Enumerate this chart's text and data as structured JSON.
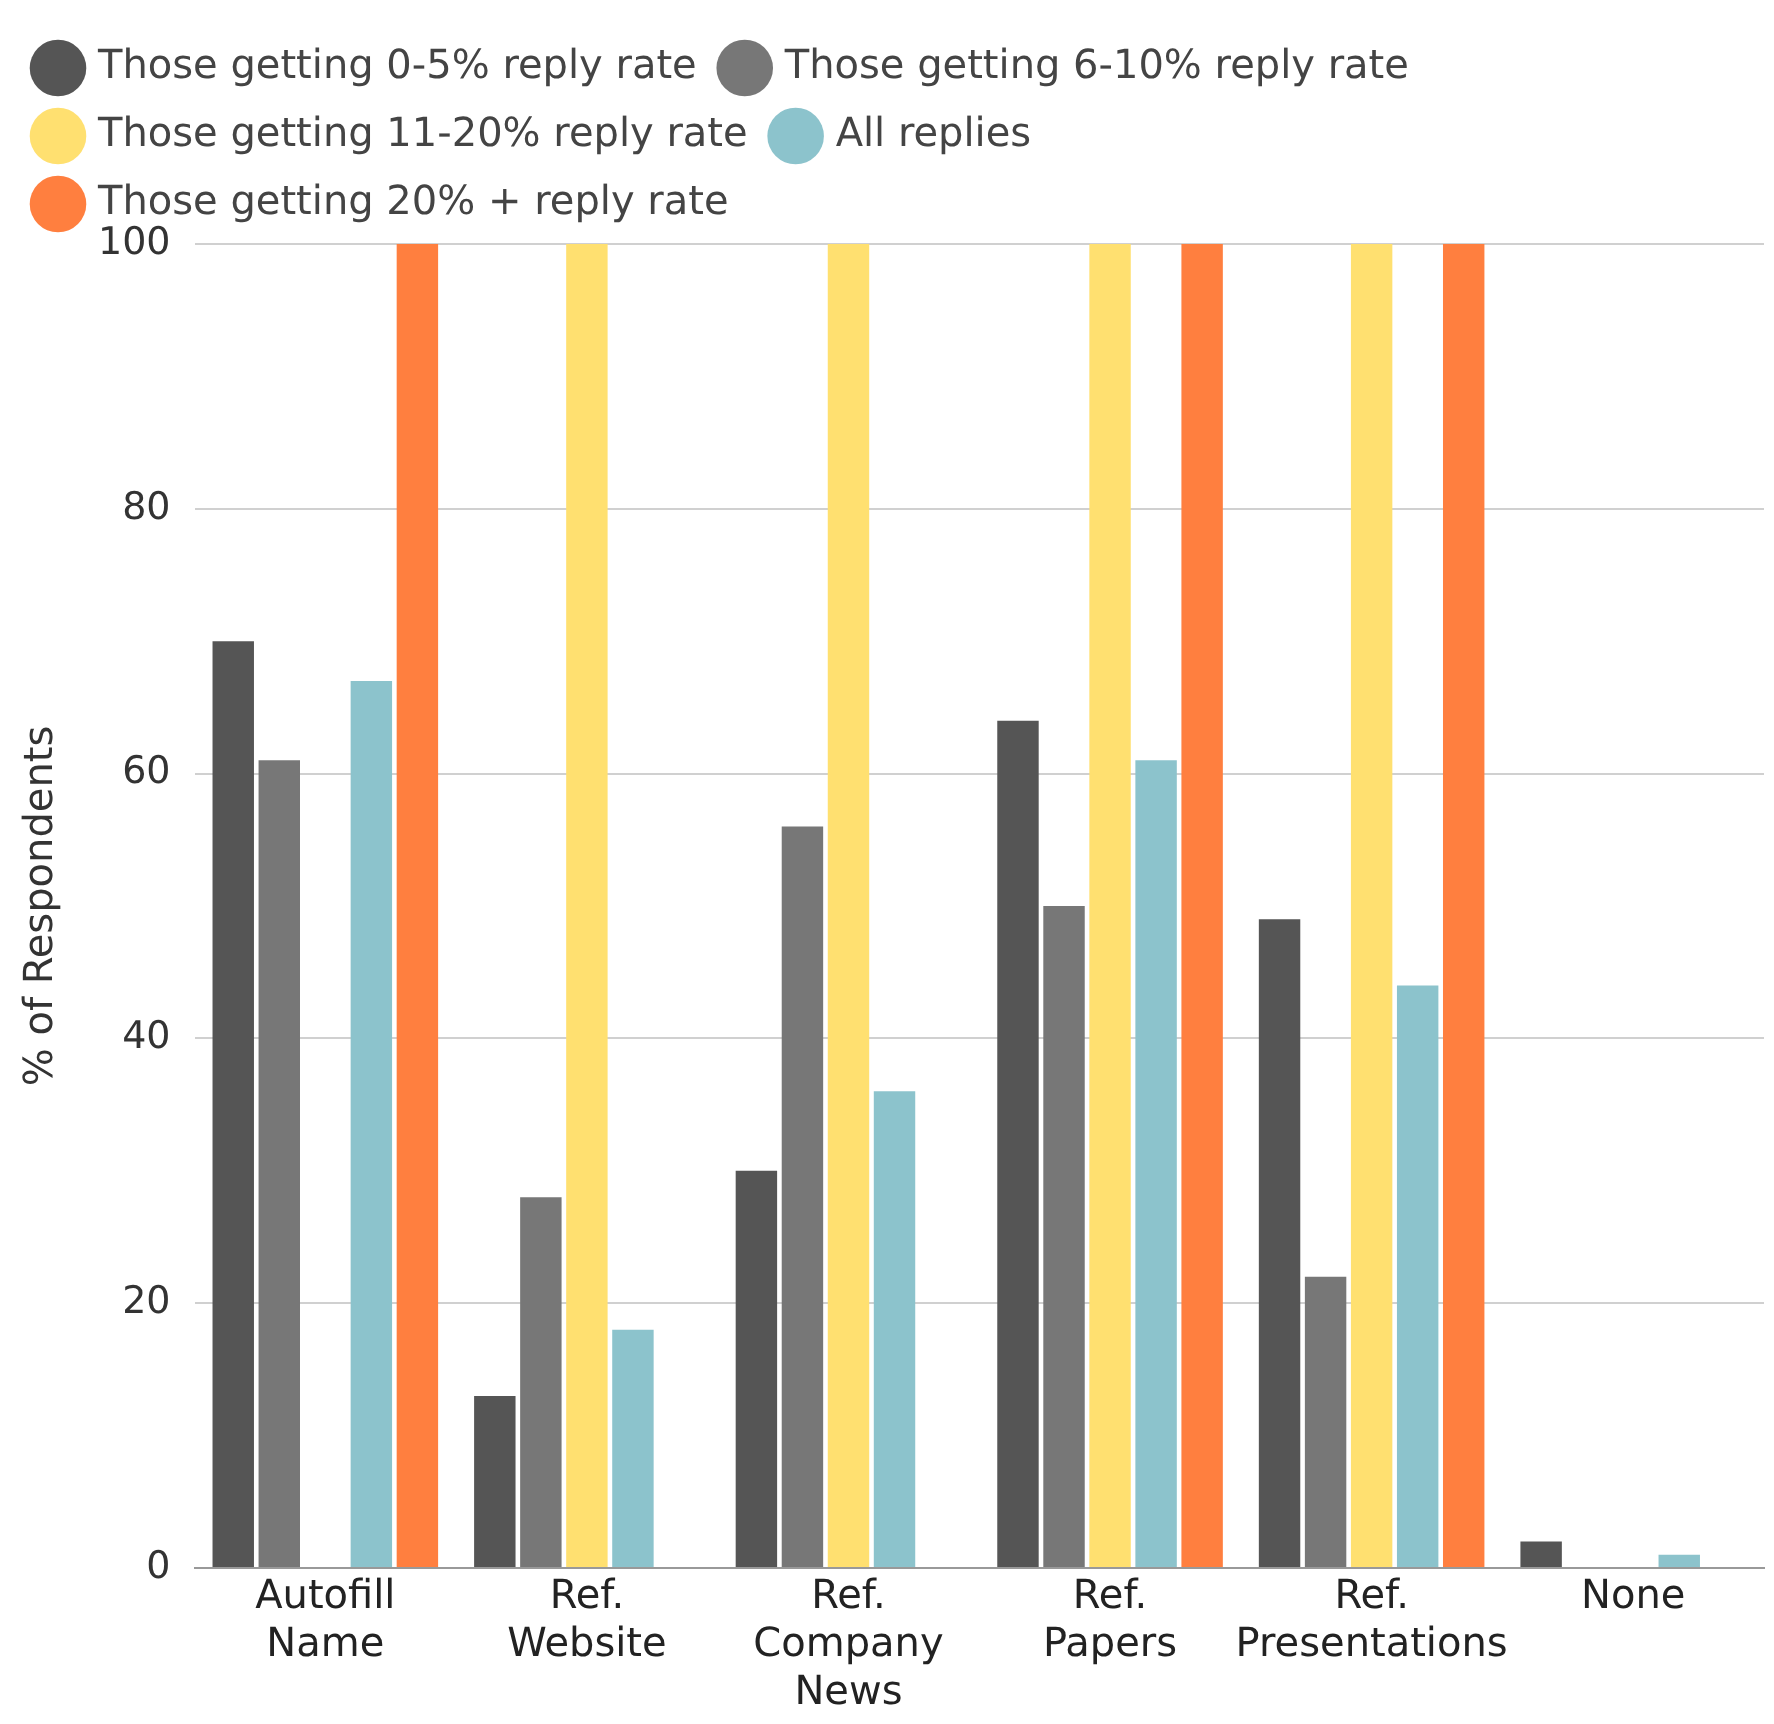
{
  "chart_data": {
    "type": "bar",
    "ylabel": "% of Respondents",
    "categories": [
      "Autofill Name",
      "Ref. Website",
      "Ref. Company News",
      "Ref. Papers",
      "Ref. Presentations",
      "None"
    ],
    "series": [
      {
        "name": "Those getting 0-5% reply rate",
        "color": "#555555",
        "values": [
          70,
          13,
          30,
          64,
          49,
          2
        ]
      },
      {
        "name": "Those getting 6-10% reply rate",
        "color": "#777777",
        "values": [
          61,
          28,
          56,
          50,
          22,
          0
        ]
      },
      {
        "name": "Those getting 11-20% reply rate",
        "color": "#ffe070",
        "values": [
          0,
          100,
          100,
          100,
          100,
          0
        ]
      },
      {
        "name": "All replies",
        "color": "#8cc3cc",
        "values": [
          67,
          18,
          36,
          61,
          44,
          1
        ]
      },
      {
        "name": "Those getting 20% + reply rate",
        "color": "#ff7f3f",
        "values": [
          100,
          0,
          0,
          100,
          100,
          0
        ]
      }
    ],
    "ylim": [
      0,
      100
    ],
    "yticks": [
      0,
      20,
      40,
      60,
      80,
      100
    ],
    "grid": "y",
    "legend": "top"
  }
}
